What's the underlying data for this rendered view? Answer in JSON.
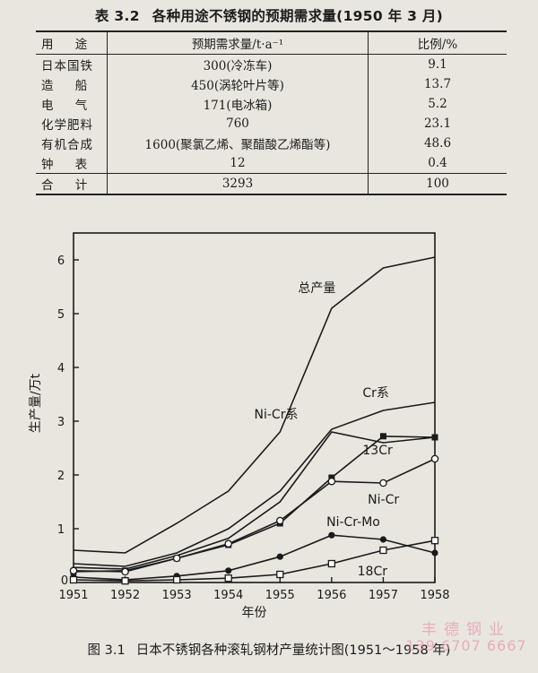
{
  "table": {
    "number": "表 3.2",
    "title": "各种用途不锈钢的预期需求量(1950 年 3 月)",
    "headers": [
      "用 途",
      "预期需求量/t·a⁻¹",
      "比例/%"
    ],
    "rows": [
      [
        "日本国铁",
        "300(冷冻车)",
        "9.1"
      ],
      [
        "造 船",
        "450(涡轮叶片等)",
        "13.7"
      ],
      [
        "电 气",
        "171(电冰箱)",
        "5.2"
      ],
      [
        "化学肥料",
        "760",
        "23.1"
      ],
      [
        "有机合成",
        "1600(聚氯乙烯、聚醋酸乙烯酯等)",
        "48.6"
      ],
      [
        "钟 表",
        "12",
        "0.4"
      ]
    ],
    "total": [
      "合 计",
      "3293",
      "100"
    ]
  },
  "figure": {
    "number": "图 3.1",
    "caption": "日本不锈钢各种滚轧钢材产量统计图(1951～1958 年)"
  },
  "watermark": {
    "line1": "丰德钢业",
    "line2": "139 6707 6667"
  },
  "chart_data": {
    "type": "line",
    "title": "",
    "xlabel": "年份",
    "ylabel": "生产量/万t",
    "x": [
      1951,
      1952,
      1953,
      1954,
      1955,
      1956,
      1957,
      1958
    ],
    "xlim": [
      1951,
      1958
    ],
    "ylim": [
      0,
      6.5
    ],
    "yticks": [
      1,
      2,
      3,
      4,
      5,
      6
    ],
    "series": [
      {
        "name": "总产量",
        "values": [
          0.6,
          0.55,
          1.1,
          1.7,
          2.8,
          5.1,
          5.85,
          6.05
        ],
        "marker": "none"
      },
      {
        "name": "Cr系",
        "values": [
          0.35,
          0.3,
          0.55,
          1.0,
          1.7,
          2.85,
          3.2,
          3.35
        ],
        "marker": "none"
      },
      {
        "name": "Ni-Cr系",
        "values": [
          0.28,
          0.25,
          0.5,
          0.82,
          1.5,
          2.8,
          2.6,
          2.7
        ],
        "marker": "none"
      },
      {
        "name": "13Cr",
        "values": [
          0.2,
          0.22,
          0.45,
          0.7,
          1.1,
          1.95,
          2.72,
          2.7
        ],
        "marker": "filled-square"
      },
      {
        "name": "Ni-Cr",
        "values": [
          0.22,
          0.2,
          0.45,
          0.72,
          1.15,
          1.88,
          1.85,
          2.3
        ],
        "marker": "open-circle"
      },
      {
        "name": "Ni-Cr-Mo",
        "values": [
          0.1,
          0.05,
          0.12,
          0.22,
          0.48,
          0.88,
          0.8,
          0.55
        ],
        "marker": "filled-circle"
      },
      {
        "name": "18Cr",
        "values": [
          0.05,
          0.03,
          0.05,
          0.08,
          0.15,
          0.35,
          0.6,
          0.78
        ],
        "marker": "open-square"
      }
    ],
    "series_labels": [
      "总产量",
      "Cr系",
      "Ni-Cr系",
      "13Cr",
      "Ni-Cr",
      "Ni-Cr-Mo",
      "18Cr"
    ],
    "colors": {
      "line": "#1a1a1a"
    }
  }
}
